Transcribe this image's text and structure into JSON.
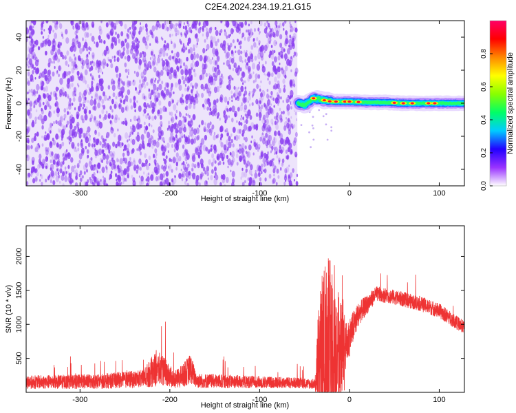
{
  "title": "C2E4.2024.234.19.21.G15",
  "chart_data": [
    {
      "type": "heatmap",
      "xlabel": "Height of straight line (km)",
      "ylabel": "Frequency (Hz)",
      "xlim": [
        -360,
        128
      ],
      "ylim": [
        -50,
        50
      ],
      "x_ticks": [
        -300,
        -200,
        -100,
        0,
        100
      ],
      "y_ticks": [
        -40,
        -20,
        0,
        20,
        40
      ],
      "colorbar": {
        "label": "Normalized spectral amplitude",
        "range": [
          0,
          1
        ],
        "ticks": [
          0.0,
          0.2,
          0.4,
          0.6,
          0.8
        ],
        "colors": [
          "#ffffff",
          "#9933ff",
          "#2200ff",
          "#00ccff",
          "#00ff66",
          "#88ff00",
          "#ffff00",
          "#ff8800",
          "#ff0000",
          "#ff0066"
        ]
      },
      "noise_region": {
        "x": [
          -360,
          -58
        ],
        "color": "#8a3df0"
      },
      "signal_track": [
        {
          "x": -57,
          "f": 0,
          "a": 0.3
        },
        {
          "x": -50,
          "f": -1,
          "a": 0.5
        },
        {
          "x": -45,
          "f": 1,
          "a": 0.6
        },
        {
          "x": -40,
          "f": 3,
          "a": 0.8
        },
        {
          "x": -30,
          "f": 2,
          "a": 0.85
        },
        {
          "x": -20,
          "f": 1,
          "a": 0.9
        },
        {
          "x": -10,
          "f": 1,
          "a": 0.7
        },
        {
          "x": 0,
          "f": 1,
          "a": 0.85
        },
        {
          "x": 20,
          "f": 0.5,
          "a": 0.7
        },
        {
          "x": 40,
          "f": 0.5,
          "a": 0.75
        },
        {
          "x": 60,
          "f": 0,
          "a": 0.8
        },
        {
          "x": 80,
          "f": 0,
          "a": 0.8
        },
        {
          "x": 95,
          "f": 0,
          "a": 0.85
        },
        {
          "x": 110,
          "f": 0,
          "a": 0.9
        },
        {
          "x": 128,
          "f": 0,
          "a": 0.9
        }
      ],
      "hot_spots_x": [
        -40,
        -28,
        -22,
        -15,
        -5,
        0,
        10,
        50,
        60,
        70,
        88,
        95
      ]
    },
    {
      "type": "line",
      "xlabel": "Height of straight line (km)",
      "ylabel": "SNR (10 * v/v)",
      "xlim": [
        -360,
        128
      ],
      "ylim": [
        0,
        2450
      ],
      "x_ticks": [
        -300,
        -200,
        -100,
        0,
        100
      ],
      "y_ticks": [
        500,
        1000,
        1500,
        2000
      ],
      "color": "#ee3333",
      "envelope": [
        {
          "x": -360,
          "base": 150,
          "amp": 200
        },
        {
          "x": -280,
          "base": 160,
          "amp": 220
        },
        {
          "x": -230,
          "base": 200,
          "amp": 260
        },
        {
          "x": -215,
          "base": 350,
          "amp": 550
        },
        {
          "x": -205,
          "base": 300,
          "amp": 400
        },
        {
          "x": -195,
          "base": 180,
          "amp": 250
        },
        {
          "x": -185,
          "base": 250,
          "amp": 350
        },
        {
          "x": -177,
          "base": 350,
          "amp": 450
        },
        {
          "x": -170,
          "base": 170,
          "amp": 220
        },
        {
          "x": -100,
          "base": 150,
          "amp": 180
        },
        {
          "x": -60,
          "base": 140,
          "amp": 160
        },
        {
          "x": -38,
          "base": 120,
          "amp": 150
        },
        {
          "x": -35,
          "base": 300,
          "amp": 900
        },
        {
          "x": -25,
          "base": 700,
          "amp": 1700
        },
        {
          "x": -15,
          "base": 500,
          "amp": 1100
        },
        {
          "x": -5,
          "base": 650,
          "amp": 700
        },
        {
          "x": 10,
          "base": 1150,
          "amp": 350
        },
        {
          "x": 30,
          "base": 1450,
          "amp": 220
        },
        {
          "x": 50,
          "base": 1400,
          "amp": 220
        },
        {
          "x": 80,
          "base": 1300,
          "amp": 220
        },
        {
          "x": 100,
          "base": 1200,
          "amp": 220
        },
        {
          "x": 128,
          "base": 950,
          "amp": 200
        }
      ]
    }
  ]
}
